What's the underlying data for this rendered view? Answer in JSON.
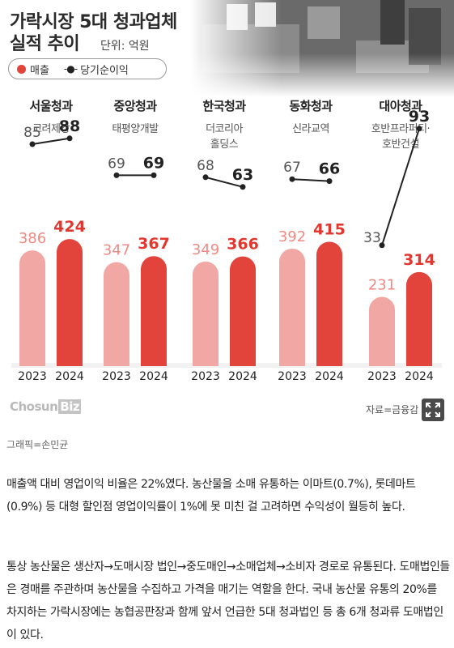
{
  "header": {
    "title_line1": "가락시장 5대 청과업체",
    "title_line2": "실적 추이",
    "unit": "단위: 억원"
  },
  "legend": {
    "sales": "매출",
    "profit_symbol": "-●-",
    "profit": "당기순이익"
  },
  "colors": {
    "bar_2023": "#f1a8a4",
    "bar_2024": "#e2443c",
    "label_2023": "#f08a83",
    "label_2024": "#e2372f"
  },
  "companies": [
    {
      "name": "서울청과",
      "parent": [
        "고려제강"
      ]
    },
    {
      "name": "중앙청과",
      "parent": [
        "태평양개발"
      ]
    },
    {
      "name": "한국청과",
      "parent": [
        "더코리아",
        "홀딩스"
      ]
    },
    {
      "name": "동화청과",
      "parent": [
        "신라교역"
      ]
    },
    {
      "name": "대아청과",
      "parent": [
        "호반프라퍼티·",
        "호반건설"
      ]
    }
  ],
  "chart_data": {
    "type": "bar",
    "categories": [
      "서울청과",
      "중앙청과",
      "한국청과",
      "동화청과",
      "대아청과"
    ],
    "x_labels": [
      "2023",
      "2024"
    ],
    "sales": {
      "2023": [
        386,
        347,
        349,
        392,
        231
      ],
      "2024": [
        424,
        367,
        366,
        415,
        314
      ]
    },
    "net_profit": {
      "2023": [
        85,
        69,
        68,
        67,
        33
      ],
      "2024": [
        88,
        69,
        63,
        66,
        93
      ]
    }
  },
  "footer": {
    "brand_main": "Chosun",
    "brand_tail": "Biz",
    "source": "자료=금융감"
  },
  "caption": "그래픽=손민균",
  "paragraphs": [
    "매출액 대비 영업이익 비율은 22%였다. 농산물을 소매 유통하는 이마트(0.7%), 롯데마트(0.9%) 등 대형 할인점 영업이익률이 1%에 못 미친 걸 고려하면 수익성이 월등히 높다.",
    "통상 농산물은 생산자→도매시장 법인→중도매인→소매업체→소비자 경로로 유통된다. 도매법인들은 경매를 주관하며 농산물을 수집하고 가격을 매기는 역할을 한다. 국내 농산물 유통의 20%를 차지하는 가락시장에는 농협공판장과 함께 앞서 언급한 5대 청과법인 등 총 6개 청과류 도매법인이 있다."
  ]
}
